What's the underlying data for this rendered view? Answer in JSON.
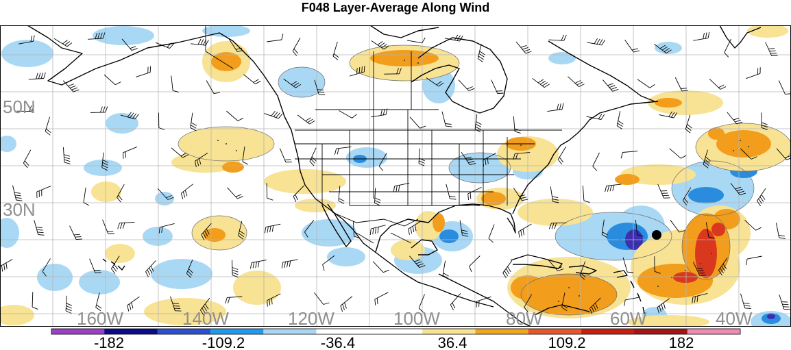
{
  "title": "F048 Layer-Average Along Wind",
  "map": {
    "lat_labels": [
      "50N",
      "30N"
    ],
    "lon_labels": [
      "160W",
      "140W",
      "120W",
      "100W",
      "80W",
      "60W",
      "40W"
    ],
    "colors": {
      "neg_strong": "#3c2fb0",
      "neg_mid": "#2a8cde",
      "neg_light": "#a9d8f5",
      "pos_light": "#f8e293",
      "pos_mid": "#f29d1b",
      "pos_strong": "#d9381e",
      "coast": "#000000",
      "grid": "#b5b5b5",
      "axis_label": "#8f8f8f"
    }
  },
  "colorbar": {
    "labels": [
      "-182",
      "-109.2",
      "-36.4",
      "36.4",
      "109.2",
      "182"
    ],
    "colors": [
      "#9b3fc8",
      "#0a0a8a",
      "#2c4fd0",
      "#1e9bf0",
      "#aad6f5",
      "#ffffff",
      "#ffffff",
      "#f9e38f",
      "#f4a51e",
      "#e9562a",
      "#c81e10",
      "#a31414",
      "#f08ab3"
    ]
  }
}
